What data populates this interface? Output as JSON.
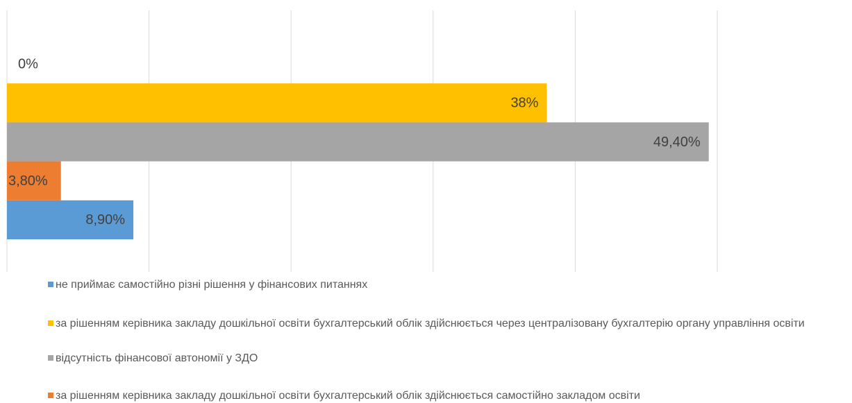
{
  "chart_data": {
    "type": "bar",
    "orientation": "horizontal",
    "series": [
      {
        "name": "не приймає самостійно різні рішення у фінансових питаннях",
        "color": "#5b9bd5",
        "values": [
          8.9
        ],
        "value_labels": [
          "8,90%"
        ]
      },
      {
        "name": "за рішенням керівника закладу дошкільної освіти бухгалтерський облік здійснюється через централізовану бухгалтерію органу управління освіти",
        "color": "#ffc000",
        "values": [
          38
        ],
        "value_labels": [
          "38%"
        ]
      },
      {
        "name": "відсутність фінансової автономії у ЗДО",
        "color": "#a5a5a5",
        "values": [
          49.4
        ],
        "value_labels": [
          "49,40%"
        ]
      },
      {
        "name": "за рішенням керівника закладу дошкільної освіти бухгалтерський облік здійснюється самостійно закладом освіти",
        "color": "#ed7d31",
        "values": [
          3.8
        ],
        "value_labels": [
          "3,80%"
        ]
      },
      {
        "color": "#7f7f7f",
        "values": [
          0
        ],
        "value_labels": [
          "0%"
        ]
      }
    ],
    "xlim": [
      0,
      50
    ],
    "xticks": [
      0,
      10,
      20,
      30,
      40,
      50
    ],
    "grid": true
  }
}
